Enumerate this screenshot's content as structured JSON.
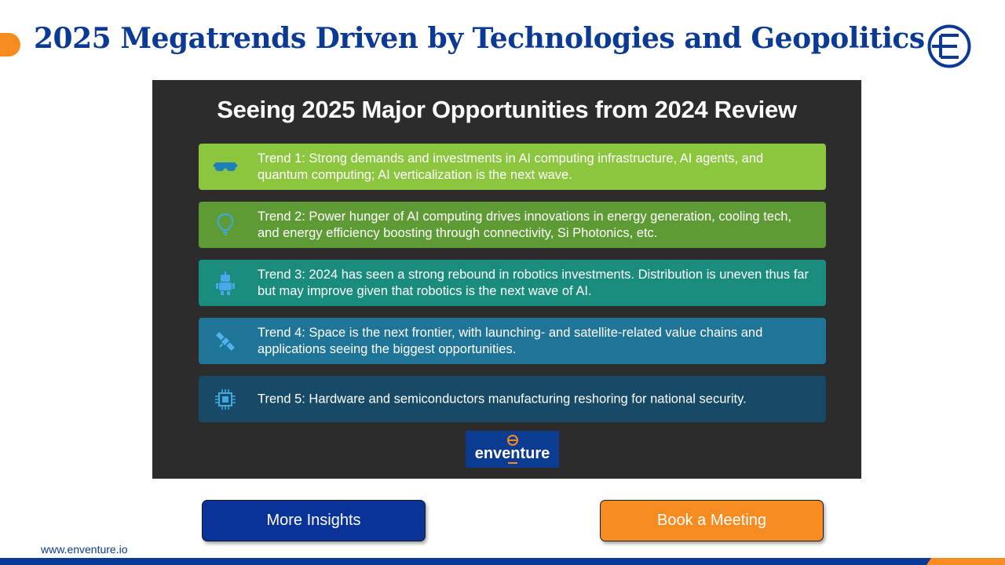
{
  "header": {
    "title": "2025 Megatrends Driven by Technologies and Geopolitics",
    "logo_icon": "enventure-e-logo-icon"
  },
  "panel": {
    "title": "Seeing 2025 Major Opportunities from 2024 Review",
    "trends": [
      {
        "text": "Trend 1: Strong demands and investments in AI computing infrastructure, AI agents, and quantum computing; AI verticalization is the next wave.",
        "icon": "vr-headset-icon",
        "color": "#8cc63f"
      },
      {
        "text": "Trend 2: Power hunger of AI computing drives innovations in energy generation, cooling tech, and energy efficiency boosting through connectivity, Si Photonics, etc.",
        "icon": "lightbulb-icon",
        "color": "#5e9b34"
      },
      {
        "text": "Trend 3: 2024 has seen a strong rebound in robotics investments. Distribution is uneven thus far but may improve given that robotics is the next wave of AI.",
        "icon": "robot-icon",
        "color": "#1a8c7e"
      },
      {
        "text": "Trend 4: Space is the next frontier, with launching- and satellite-related value chains and applications seeing the biggest opportunities.",
        "icon": "satellite-icon",
        "color": "#1f7597"
      },
      {
        "text": "Trend 5: Hardware and semiconductors manufacturing reshoring for national security.",
        "icon": "chip-icon",
        "color": "#164a66"
      }
    ],
    "badge": {
      "word": "enventure"
    }
  },
  "buttons": {
    "insights": "More Insights",
    "meeting": "Book a Meeting"
  },
  "footer": {
    "url": "www.enventure.io"
  },
  "colors": {
    "brand_blue": "#0a3a94",
    "brand_orange": "#f68b1f"
  }
}
